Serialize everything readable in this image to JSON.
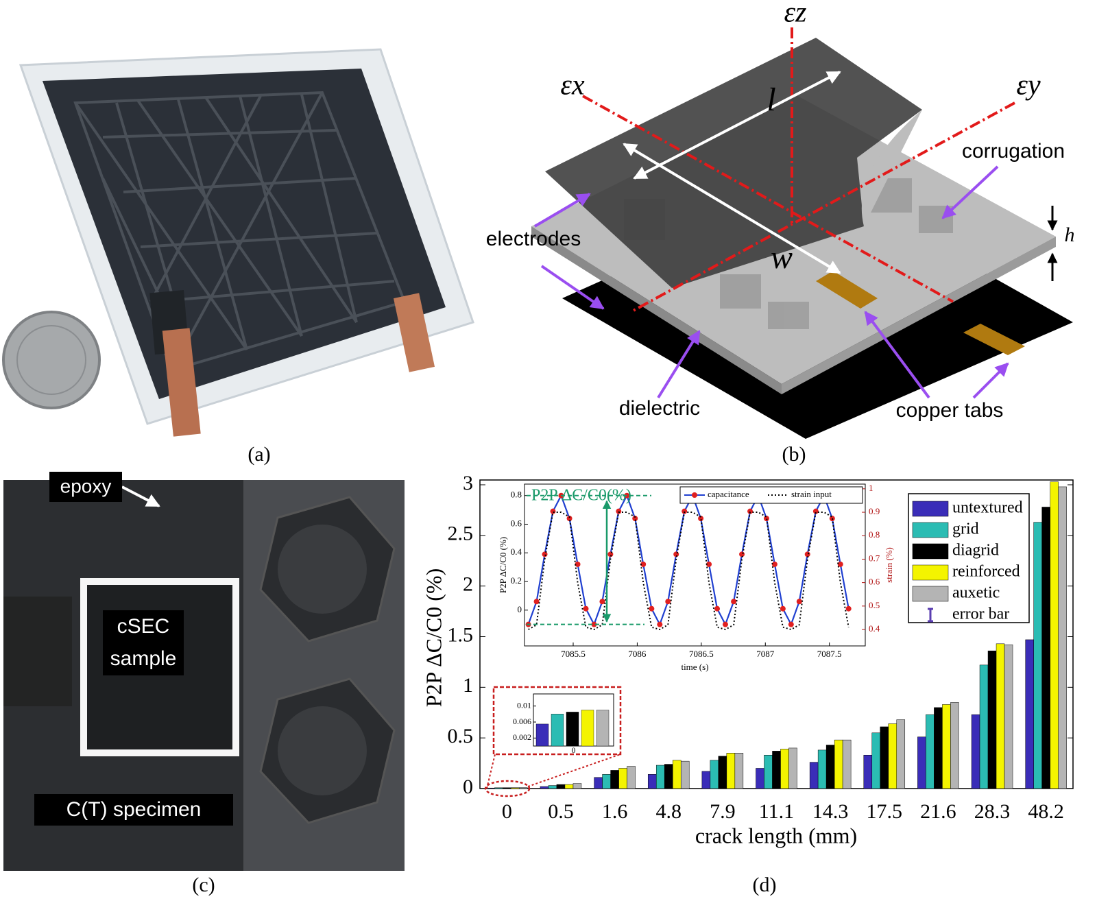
{
  "panels": {
    "a": {
      "caption": "(a)"
    },
    "b": {
      "caption": "(b)",
      "labels": {
        "ez": "εz",
        "ex": "εx",
        "ey": "εy",
        "l": "l",
        "w": "w",
        "h": "h",
        "corrugation": "corrugation",
        "electrodes": "electrodes",
        "dielectric": "dielectric",
        "tabs": "copper tabs"
      }
    },
    "c": {
      "caption": "(c)",
      "labels": {
        "epoxy": "epoxy",
        "sample": [
          "cSEC",
          "sample"
        ],
        "specimen": "C(T) specimen"
      }
    },
    "d": {
      "caption": "(d)"
    }
  },
  "chart_data": [
    {
      "type": "bar",
      "x_label": "crack length (mm)",
      "y_label": "P2P ΔC/C0 (%)",
      "categories": [
        "0",
        "0.5",
        "1.6",
        "4.8",
        "7.9",
        "11.1",
        "14.3",
        "17.5",
        "21.6",
        "28.3",
        "48.2"
      ],
      "series": [
        {
          "name": "untextured",
          "color": "#3a2db8",
          "values": [
            0.0055,
            0.02,
            0.11,
            0.14,
            0.17,
            0.2,
            0.26,
            0.33,
            0.51,
            0.73,
            1.47
          ]
        },
        {
          "name": "grid",
          "color": "#2bbcb3",
          "values": [
            0.008,
            0.03,
            0.14,
            0.23,
            0.28,
            0.33,
            0.38,
            0.55,
            0.73,
            1.22,
            2.63
          ]
        },
        {
          "name": "diagrid",
          "color": "#000000",
          "values": [
            0.0085,
            0.04,
            0.18,
            0.24,
            0.32,
            0.37,
            0.43,
            0.61,
            0.8,
            1.36,
            2.78
          ]
        },
        {
          "name": "reinforced",
          "color": "#f4f400",
          "values": [
            0.009,
            0.04,
            0.2,
            0.28,
            0.35,
            0.39,
            0.48,
            0.64,
            0.83,
            1.43,
            3.03
          ]
        },
        {
          "name": "auxetic",
          "color": "#b4b4b4",
          "values": [
            0.009,
            0.05,
            0.22,
            0.27,
            0.35,
            0.4,
            0.48,
            0.68,
            0.85,
            1.42,
            2.98
          ]
        }
      ],
      "ylim": [
        0,
        3
      ],
      "yticks": [
        0,
        0.5,
        1,
        1.5,
        2,
        2.5,
        3
      ],
      "legend": "top right",
      "error_bar_label": "error bar",
      "error_bar_color": "#5a3db0"
    },
    {
      "type": "line",
      "x_label": "time (s)",
      "y_label": "P2P ΔC/C0 (%)",
      "y2_label": "strain (%)",
      "annotation": "P2P ΔC/C0(%)",
      "annotation_color": "#1a9a6a",
      "x": [
        7085.15,
        7085.214,
        7085.278,
        7085.342,
        7085.406,
        7085.471,
        7085.535,
        7085.599,
        7085.663,
        7085.727,
        7085.791,
        7085.855,
        7085.919,
        7085.983,
        7086.047,
        7086.112,
        7086.176,
        7086.24,
        7086.304,
        7086.368,
        7086.432,
        7086.496,
        7086.56,
        7086.624,
        7086.688,
        7086.753,
        7086.817,
        7086.881,
        7086.945,
        7087.009,
        7087.073,
        7087.137,
        7087.201,
        7087.265,
        7087.329,
        7087.394,
        7087.458,
        7087.522,
        7087.586,
        7087.65
      ],
      "series": [
        {
          "name": "capacitance",
          "color": "#1f3fd0",
          "marker_color": "#e02020",
          "values": [
            -0.1,
            0.06,
            0.39,
            0.69,
            0.8,
            0.64,
            0.32,
            0.01,
            -0.1,
            0.06,
            0.39,
            0.69,
            0.8,
            0.64,
            0.32,
            0.01,
            -0.1,
            0.06,
            0.39,
            0.69,
            0.8,
            0.64,
            0.32,
            0.01,
            -0.1,
            0.06,
            0.39,
            0.69,
            0.8,
            0.64,
            0.32,
            0.01,
            -0.1,
            0.06,
            0.39,
            0.69,
            0.8,
            0.64,
            0.32,
            0.01
          ]
        },
        {
          "name": "strain input",
          "color": "#000000",
          "axis": "y2",
          "values": [
            0.4,
            0.42,
            0.7,
            0.9,
            0.9,
            0.88,
            0.6,
            0.41,
            0.4,
            0.42,
            0.7,
            0.9,
            0.9,
            0.88,
            0.6,
            0.41,
            0.4,
            0.42,
            0.7,
            0.9,
            0.9,
            0.88,
            0.6,
            0.41,
            0.4,
            0.42,
            0.7,
            0.9,
            0.9,
            0.88,
            0.6,
            0.41,
            0.4,
            0.42,
            0.7,
            0.9,
            0.9,
            0.88,
            0.6,
            0.41
          ]
        }
      ],
      "xlim": [
        7085.12,
        7087.78
      ],
      "xticks": [
        7085.5,
        7086,
        7086.5,
        7087,
        7087.5
      ],
      "ylim": [
        -0.25,
        0.88
      ],
      "yticks": [
        0,
        0.2,
        0.4,
        0.6,
        0.8
      ],
      "y2lim": [
        0.33,
        1.02
      ],
      "y2ticks": [
        0.4,
        0.5,
        0.6,
        0.7,
        0.8,
        0.9,
        1
      ],
      "y2_color": "#b01010"
    },
    {
      "type": "bar",
      "ylim": [
        0,
        0.012
      ],
      "yticks": [
        0.002,
        0.006,
        0.01
      ]
    }
  ]
}
